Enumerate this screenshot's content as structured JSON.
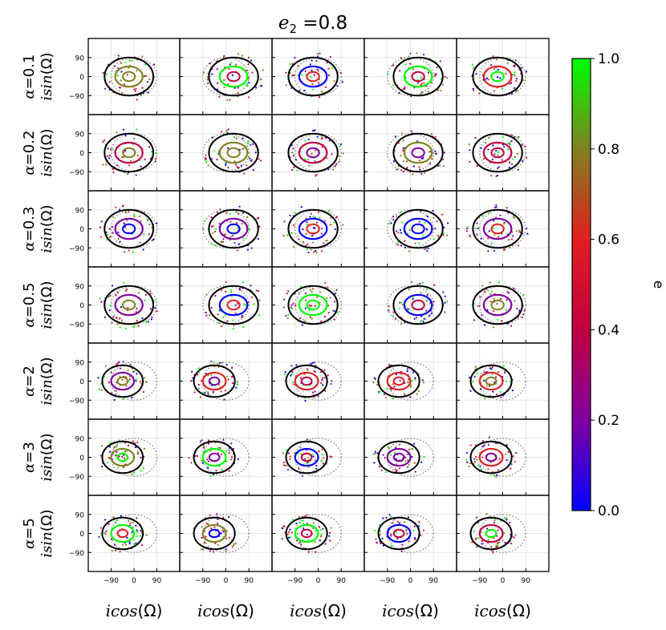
{
  "figure": {
    "title_var": "e",
    "title_sub": "2",
    "title_rest": " =0.8"
  },
  "chart_data": {
    "type": "scatter",
    "title": "e2 =0.8",
    "xlabel": "icos(Ω)",
    "ylabel": "isin(Ω)",
    "xlabel_parts": {
      "fn": "icos",
      "arg": "(Ω)"
    },
    "ylabel_parts": {
      "fn": "isin",
      "arg": "(Ω)"
    },
    "xlim": [
      -180,
      180
    ],
    "ylim": [
      -180,
      180
    ],
    "xticks": [
      -90,
      0,
      90
    ],
    "yticks": [
      90,
      0,
      -90
    ],
    "xtick_labels": [
      "−90",
      "0",
      "90"
    ],
    "ytick_labels": [
      "90",
      "0",
      "−90"
    ],
    "grid": true,
    "rows": [
      "α=0.1",
      "α=0.2",
      "α=0.3",
      "α=0.5",
      "α=2",
      "α=3",
      "α=5"
    ],
    "columns": 5,
    "reference_circle_radius": 90,
    "colorbar": {
      "label": "e",
      "range": [
        0.0,
        1.0
      ],
      "ticks": [
        1.0,
        0.8,
        0.6,
        0.4,
        0.2,
        0.0
      ],
      "tick_labels": [
        "1.0",
        "0.8",
        "0.6",
        "0.4",
        "0.2",
        "0.0"
      ],
      "colors": [
        "#0000ff",
        "#8000a0",
        "#c00040",
        "#e02020",
        "#808020",
        "#00ff00"
      ]
    }
  }
}
